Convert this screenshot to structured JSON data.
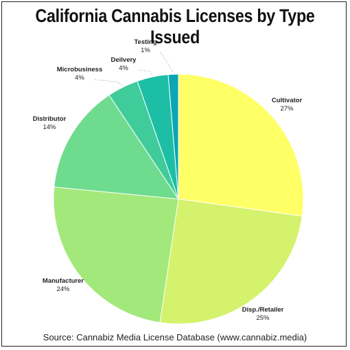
{
  "chart_data": {
    "type": "pie",
    "title": "California Cannabis Licenses by Type Issued",
    "source": "Source: Cannabiz Media License Database (www.cannabiz.media)",
    "slices": [
      {
        "label": "Cultivator",
        "pct_label": "27%",
        "value": 27,
        "color": "#ffff66"
      },
      {
        "label": "Disp./Retailer",
        "pct_label": "25%",
        "value": 25,
        "color": "#d4f26b"
      },
      {
        "label": "Manufacturer",
        "pct_label": "24%",
        "value": 24,
        "color": "#a2e87a"
      },
      {
        "label": "Distributor",
        "pct_label": "14%",
        "value": 14,
        "color": "#6edb8e"
      },
      {
        "label": "Microbusiness",
        "pct_label": "4%",
        "value": 4,
        "color": "#40cc9a"
      },
      {
        "label": "Deilvery",
        "pct_label": "4%",
        "value": 4,
        "color": "#1cbfa6"
      },
      {
        "label": "Testing",
        "pct_label": "1%",
        "value": 1.3,
        "color": "#0aa6b4"
      }
    ]
  }
}
